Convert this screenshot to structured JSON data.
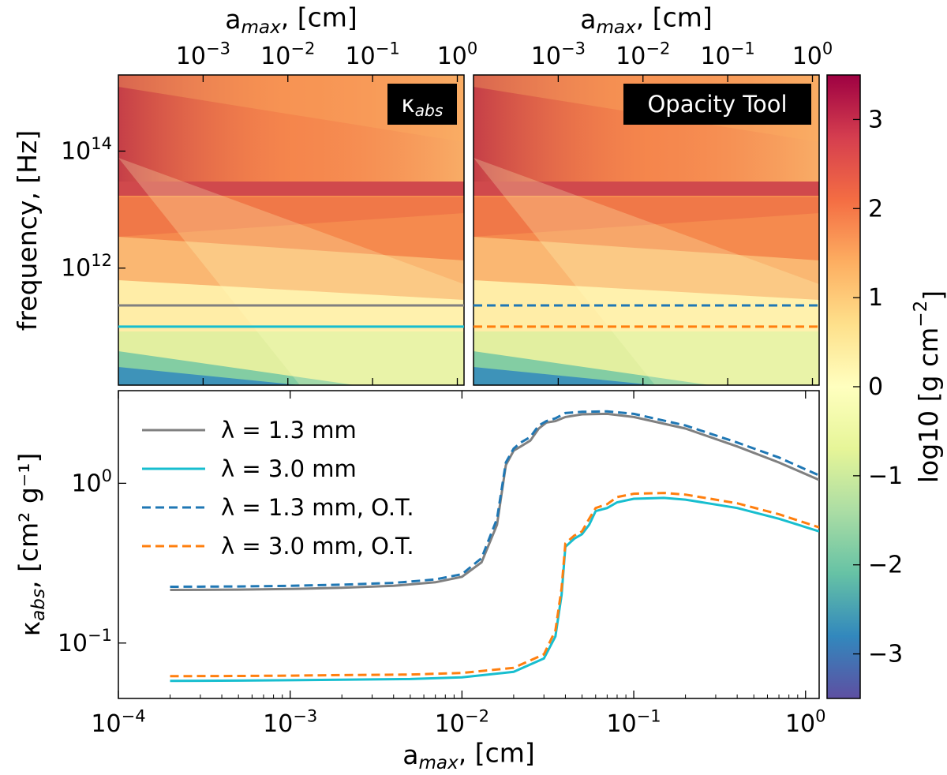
{
  "chart_data": [
    {
      "id": "heatmap-kabs",
      "type": "heatmap",
      "title": "",
      "badge": "κ_abs",
      "top_axis_label": "a_max, [cm]",
      "top_ticks": [
        {
          "value": 0.001,
          "label": "10^-3"
        },
        {
          "value": 0.01,
          "label": "10^-2"
        },
        {
          "value": 0.1,
          "label": "10^-1"
        },
        {
          "value": 1,
          "label": "10^0"
        }
      ],
      "ylabel": "frequency, [Hz]",
      "y_ticks": [
        {
          "value": 100000000000000.0,
          "label": "10^14"
        },
        {
          "value": 1000000000000.0,
          "label": "10^12"
        }
      ],
      "xlim": [
        0.0001,
        1.2
      ],
      "ylim": [
        10000000000.0,
        2000000000000000.0
      ],
      "hlines": [
        {
          "name": "λ = 1.3 mm",
          "freq_hz": 230000000000.0,
          "color": "#808080",
          "style": "solid"
        },
        {
          "name": "λ = 3.0 mm",
          "freq_hz": 100000000000.0,
          "color": "#17becf",
          "style": "solid"
        }
      ]
    },
    {
      "id": "heatmap-opacity-tool",
      "type": "heatmap",
      "title": "",
      "badge": "Opacity Tool",
      "top_axis_label": "a_max, [cm]",
      "top_ticks": [
        {
          "value": 0.001,
          "label": "10^-3"
        },
        {
          "value": 0.01,
          "label": "10^-2"
        },
        {
          "value": 0.1,
          "label": "10^-1"
        },
        {
          "value": 1,
          "label": "10^0"
        }
      ],
      "xlim": [
        0.0001,
        1.2
      ],
      "ylim": [
        10000000000.0,
        2000000000000000.0
      ],
      "hlines": [
        {
          "name": "λ = 1.3 mm, O.T.",
          "freq_hz": 230000000000.0,
          "color": "#1f77b4",
          "style": "dashed"
        },
        {
          "name": "λ = 3.0 mm, O.T.",
          "freq_hz": 100000000000.0,
          "color": "#ff7f0e",
          "style": "dashed"
        }
      ]
    },
    {
      "id": "colorbar",
      "type": "colorbar",
      "label": "log10 [g cm^-2]",
      "range": [
        -3.5,
        3.5
      ],
      "ticks": [
        {
          "value": 3,
          "label": "3"
        },
        {
          "value": 2,
          "label": "2"
        },
        {
          "value": 1,
          "label": "1"
        },
        {
          "value": 0,
          "label": "0"
        },
        {
          "value": -1,
          "label": "−1"
        },
        {
          "value": -2,
          "label": "−2"
        },
        {
          "value": -3,
          "label": "−3"
        }
      ],
      "stops": [
        "#5e4fa2",
        "#3288bd",
        "#66c2a5",
        "#abdda4",
        "#e6f598",
        "#ffffbf",
        "#fee08b",
        "#fdae61",
        "#f46d43",
        "#d53e4f",
        "#9e0142"
      ]
    },
    {
      "id": "line-kabs",
      "type": "line",
      "xscale": "log",
      "yscale": "log",
      "xlabel": "a_max, [cm]",
      "ylabel": "κ_abs, [cm² g⁻¹]",
      "xlim": [
        0.0001,
        1.2
      ],
      "ylim": [
        0.045,
        3.8
      ],
      "x_ticks": [
        {
          "value": 0.0001,
          "label": "10^-4"
        },
        {
          "value": 0.001,
          "label": "10^-3"
        },
        {
          "value": 0.01,
          "label": "10^-2"
        },
        {
          "value": 0.1,
          "label": "10^-1"
        },
        {
          "value": 1,
          "label": "10^0"
        }
      ],
      "y_ticks": [
        {
          "value": 1,
          "label": "10^0"
        },
        {
          "value": 0.1,
          "label": "10^-1"
        }
      ],
      "legend_position": "top-left",
      "series": [
        {
          "name": "λ = 1.3 mm",
          "color": "#808080",
          "style": "solid",
          "points": [
            [
              0.0002,
              0.215
            ],
            [
              0.0005,
              0.216
            ],
            [
              0.001,
              0.218
            ],
            [
              0.002,
              0.222
            ],
            [
              0.004,
              0.228
            ],
            [
              0.007,
              0.24
            ],
            [
              0.01,
              0.26
            ],
            [
              0.013,
              0.32
            ],
            [
              0.016,
              0.55
            ],
            [
              0.018,
              1.3
            ],
            [
              0.02,
              1.6
            ],
            [
              0.022,
              1.7
            ],
            [
              0.025,
              1.85
            ],
            [
              0.028,
              2.2
            ],
            [
              0.031,
              2.4
            ],
            [
              0.035,
              2.45
            ],
            [
              0.04,
              2.6
            ],
            [
              0.05,
              2.7
            ],
            [
              0.07,
              2.72
            ],
            [
              0.1,
              2.6
            ],
            [
              0.2,
              2.2
            ],
            [
              0.4,
              1.7
            ],
            [
              0.7,
              1.35
            ],
            [
              1.2,
              1.05
            ]
          ]
        },
        {
          "name": "λ = 3.0 mm",
          "color": "#17becf",
          "style": "solid",
          "points": [
            [
              0.0002,
              0.058
            ],
            [
              0.0005,
              0.0582
            ],
            [
              0.001,
              0.0585
            ],
            [
              0.002,
              0.059
            ],
            [
              0.005,
              0.0595
            ],
            [
              0.01,
              0.061
            ],
            [
              0.02,
              0.066
            ],
            [
              0.03,
              0.08
            ],
            [
              0.035,
              0.11
            ],
            [
              0.038,
              0.2
            ],
            [
              0.04,
              0.4
            ],
            [
              0.045,
              0.45
            ],
            [
              0.05,
              0.48
            ],
            [
              0.055,
              0.55
            ],
            [
              0.06,
              0.67
            ],
            [
              0.07,
              0.7
            ],
            [
              0.08,
              0.76
            ],
            [
              0.1,
              0.8
            ],
            [
              0.15,
              0.81
            ],
            [
              0.2,
              0.79
            ],
            [
              0.4,
              0.7
            ],
            [
              0.7,
              0.6
            ],
            [
              1.2,
              0.5
            ]
          ]
        },
        {
          "name": "λ = 1.3 mm, O.T.",
          "color": "#1f77b4",
          "style": "dashed",
          "points": [
            [
              0.0002,
              0.225
            ],
            [
              0.0005,
              0.226
            ],
            [
              0.001,
              0.228
            ],
            [
              0.002,
              0.232
            ],
            [
              0.004,
              0.238
            ],
            [
              0.007,
              0.25
            ],
            [
              0.01,
              0.27
            ],
            [
              0.013,
              0.34
            ],
            [
              0.016,
              0.6
            ],
            [
              0.018,
              1.35
            ],
            [
              0.02,
              1.65
            ],
            [
              0.022,
              1.8
            ],
            [
              0.025,
              1.95
            ],
            [
              0.028,
              2.3
            ],
            [
              0.031,
              2.45
            ],
            [
              0.035,
              2.55
            ],
            [
              0.04,
              2.75
            ],
            [
              0.05,
              2.8
            ],
            [
              0.07,
              2.82
            ],
            [
              0.1,
              2.72
            ],
            [
              0.2,
              2.3
            ],
            [
              0.4,
              1.8
            ],
            [
              0.7,
              1.45
            ],
            [
              1.2,
              1.12
            ]
          ]
        },
        {
          "name": "λ = 3.0 mm, O.T.",
          "color": "#ff7f0e",
          "style": "dashed",
          "points": [
            [
              0.0002,
              0.062
            ],
            [
              0.0005,
              0.0622
            ],
            [
              0.001,
              0.0625
            ],
            [
              0.002,
              0.063
            ],
            [
              0.005,
              0.0635
            ],
            [
              0.01,
              0.065
            ],
            [
              0.02,
              0.07
            ],
            [
              0.03,
              0.085
            ],
            [
              0.035,
              0.12
            ],
            [
              0.038,
              0.22
            ],
            [
              0.04,
              0.42
            ],
            [
              0.045,
              0.47
            ],
            [
              0.05,
              0.5
            ],
            [
              0.055,
              0.6
            ],
            [
              0.06,
              0.7
            ],
            [
              0.07,
              0.74
            ],
            [
              0.08,
              0.82
            ],
            [
              0.1,
              0.86
            ],
            [
              0.15,
              0.87
            ],
            [
              0.2,
              0.85
            ],
            [
              0.4,
              0.75
            ],
            [
              0.7,
              0.64
            ],
            [
              1.2,
              0.53
            ]
          ]
        }
      ]
    }
  ]
}
